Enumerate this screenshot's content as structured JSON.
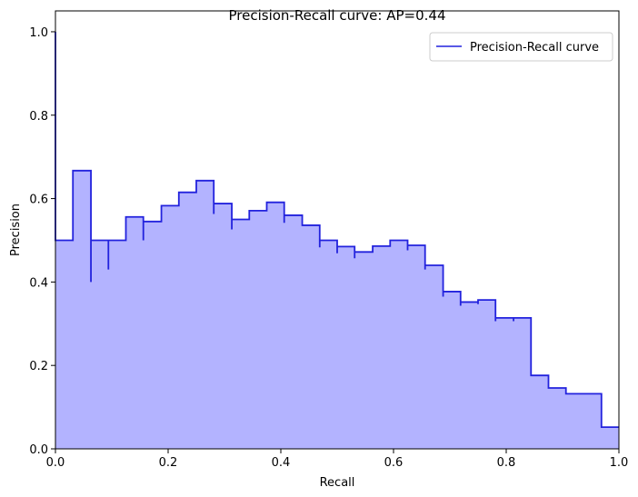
{
  "chart_data": {
    "type": "area",
    "title": "Precision-Recall curve: AP=0.44",
    "xlabel": "Recall",
    "ylabel": "Precision",
    "xlim": [
      0.0,
      1.0
    ],
    "ylim": [
      0.0,
      1.05
    ],
    "x_ticks": [
      "0.0",
      "0.2",
      "0.4",
      "0.6",
      "0.8",
      "1.0"
    ],
    "y_ticks": [
      "0.0",
      "0.2",
      "0.4",
      "0.6",
      "0.8",
      "1.0"
    ],
    "legend": {
      "placement": "top-right",
      "entries": [
        "Precision-Recall curve"
      ]
    },
    "colors": {
      "line": "#2222dd",
      "fill": "#b3b3ff"
    },
    "grid": false,
    "series": [
      {
        "name": "Precision-Recall curve",
        "recall": [
          0.0,
          0.0,
          0.031,
          0.063,
          0.063,
          0.094,
          0.094,
          0.125,
          0.156,
          0.156,
          0.188,
          0.219,
          0.25,
          0.281,
          0.281,
          0.313,
          0.313,
          0.344,
          0.375,
          0.406,
          0.406,
          0.438,
          0.469,
          0.469,
          0.5,
          0.5,
          0.531,
          0.531,
          0.563,
          0.594,
          0.625,
          0.625,
          0.656,
          0.656,
          0.688,
          0.688,
          0.719,
          0.719,
          0.75,
          0.75,
          0.781,
          0.781,
          0.813,
          0.813,
          0.844,
          0.875,
          0.906,
          0.938,
          0.969,
          1.0
        ],
        "precision": [
          1.0,
          0.5,
          0.667,
          0.4,
          0.5,
          0.43,
          0.5,
          0.556,
          0.5,
          0.545,
          0.583,
          0.615,
          0.643,
          0.563,
          0.588,
          0.526,
          0.55,
          0.571,
          0.591,
          0.542,
          0.56,
          0.536,
          0.483,
          0.5,
          0.469,
          0.485,
          0.457,
          0.472,
          0.486,
          0.5,
          0.476,
          0.488,
          0.43,
          0.44,
          0.365,
          0.377,
          0.343,
          0.352,
          0.347,
          0.357,
          0.306,
          0.314,
          0.306,
          0.314,
          0.176,
          0.146,
          0.132,
          0.132,
          0.052,
          0.052
        ]
      }
    ]
  }
}
